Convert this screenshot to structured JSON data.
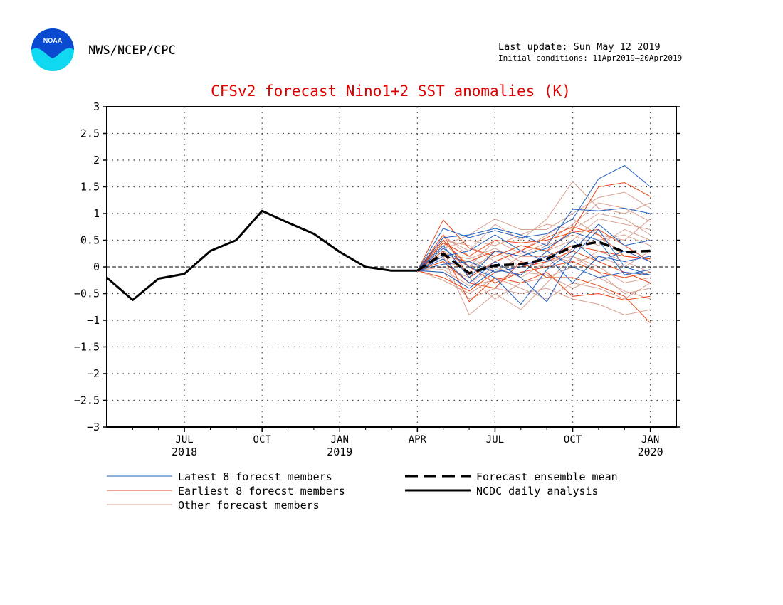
{
  "header": {
    "agency": "NWS/NCEP/CPC",
    "logo_text": "NOAA",
    "last_update": "Last update: Sun May 12 2019",
    "initial_conditions": "Initial conditions: 11Apr2019—20Apr2019"
  },
  "colors": {
    "title": "#e00000",
    "latest": "#1f5fbf",
    "earliest": "#e84818",
    "other": "#d8a090",
    "analysis": "#000000",
    "logo_blue": "#0a4ad0",
    "logo_cyan": "#10d8f0"
  },
  "chart_data": {
    "type": "line",
    "title": "CFSv2 forecast Nino1+2 SST anomalies (K)",
    "ylim": [
      -3,
      3
    ],
    "yticks": [
      "3",
      "2.5",
      "2",
      "1.5",
      "1",
      "0.5",
      "0",
      "−0.5",
      "−1",
      "−1.5",
      "−2",
      "−2.5",
      "−3"
    ],
    "ytick_values": [
      3,
      2.5,
      2,
      1.5,
      1,
      0.5,
      0,
      -0.5,
      -1,
      -1.5,
      -2,
      -2.5,
      -3
    ],
    "xlim": [
      "2018-04",
      "2020-01"
    ],
    "xticks": [
      {
        "month": "JUL",
        "year": "2018",
        "date": "2018-07"
      },
      {
        "month": "OCT",
        "year": "",
        "date": "2018-10"
      },
      {
        "month": "JAN",
        "year": "2019",
        "date": "2019-01"
      },
      {
        "month": "APR",
        "year": "",
        "date": "2019-04"
      },
      {
        "month": "JUL",
        "year": "",
        "date": "2019-07"
      },
      {
        "month": "OCT",
        "year": "",
        "date": "2019-10"
      },
      {
        "month": "JAN",
        "year": "2020",
        "date": "2020-01"
      }
    ],
    "grid": true,
    "legend_placement": "bottom",
    "legend": [
      {
        "label": "Latest 8 forecst members",
        "style": "latest"
      },
      {
        "label": "Earliest 8 forecst members",
        "style": "earliest"
      },
      {
        "label": "Other forecast members",
        "style": "other"
      },
      {
        "label": "Forecast ensemble mean",
        "style": "mean"
      },
      {
        "label": "NCDC daily analysis",
        "style": "analysis"
      }
    ],
    "analysis": {
      "x": [
        "2018-04",
        "2018-05",
        "2018-06",
        "2018-07",
        "2018-08",
        "2018-09",
        "2018-10",
        "2018-11",
        "2018-12",
        "2019-01",
        "2019-02",
        "2019-03",
        "2019-04"
      ],
      "y": [
        -0.2,
        -0.62,
        -0.22,
        -0.13,
        0.3,
        0.5,
        1.05,
        0.83,
        0.62,
        0.28,
        0.0,
        -0.07,
        -0.07
      ]
    },
    "ensemble_mean": {
      "x": [
        "2019-04",
        "2019-05",
        "2019-06",
        "2019-07",
        "2019-08",
        "2019-09",
        "2019-10",
        "2019-11",
        "2019-12",
        "2020-01"
      ],
      "y": [
        -0.07,
        0.25,
        -0.12,
        0.03,
        0.05,
        0.15,
        0.38,
        0.47,
        0.28,
        0.3
      ]
    },
    "forecast_x": [
      "2019-04",
      "2019-05",
      "2019-06",
      "2019-07",
      "2019-08",
      "2019-09",
      "2019-10",
      "2019-11",
      "2019-12",
      "2020-01"
    ],
    "latest_members": [
      [
        -0.07,
        0.72,
        0.55,
        0.68,
        0.55,
        0.62,
        0.9,
        1.65,
        1.9,
        1.5
      ],
      [
        -0.07,
        0.55,
        0.6,
        0.72,
        0.6,
        0.4,
        1.08,
        1.05,
        1.1,
        1.0
      ],
      [
        -0.07,
        0.35,
        0.0,
        -0.2,
        -0.7,
        -0.05,
        0.3,
        0.8,
        0.4,
        0.5
      ],
      [
        -0.07,
        0.15,
        -0.3,
        0.1,
        -0.2,
        -0.65,
        0.2,
        0.7,
        0.0,
        -0.15
      ],
      [
        -0.07,
        0.4,
        -0.2,
        0.3,
        0.2,
        0.35,
        0.65,
        0.5,
        -0.15,
        -0.05
      ],
      [
        -0.07,
        0.05,
        0.1,
        -0.1,
        0.0,
        0.2,
        -0.3,
        0.2,
        0.1,
        0.2
      ],
      [
        -0.07,
        0.2,
        0.3,
        0.6,
        0.3,
        0.1,
        0.5,
        0.1,
        0.3,
        0.1
      ],
      [
        -0.07,
        -0.1,
        -0.4,
        -0.05,
        -0.15,
        0.3,
        0.0,
        -0.2,
        -0.1,
        -0.15
      ]
    ],
    "earliest_members": [
      [
        -0.07,
        0.88,
        0.35,
        0.2,
        0.4,
        0.3,
        0.7,
        1.5,
        1.58,
        1.32
      ],
      [
        -0.07,
        0.6,
        -0.2,
        0.1,
        0.3,
        0.55,
        0.75,
        0.6,
        0.2,
        0.15
      ],
      [
        -0.07,
        0.3,
        -0.65,
        -0.2,
        -0.3,
        -0.1,
        -0.55,
        -0.5,
        -0.62,
        -0.55
      ],
      [
        -0.07,
        0.1,
        -0.3,
        -0.4,
        0.1,
        -0.2,
        -0.2,
        -0.35,
        -0.55,
        -1.05
      ],
      [
        -0.07,
        0.45,
        0.2,
        0.5,
        0.45,
        0.5,
        0.65,
        0.7,
        0.4,
        0.1
      ],
      [
        -0.07,
        -0.2,
        -0.45,
        -0.1,
        0.0,
        0.1,
        0.3,
        0.1,
        -0.1,
        -0.3
      ],
      [
        -0.07,
        0.2,
        0.1,
        0.3,
        0.2,
        0.2,
        0.4,
        0.3,
        0.2,
        0.15
      ],
      [
        -0.07,
        0.5,
        0.0,
        -0.3,
        -0.1,
        0.0,
        0.1,
        -0.1,
        -0.2,
        -0.1
      ]
    ],
    "other_members": [
      [
        -0.07,
        0.55,
        0.3,
        0.8,
        0.5,
        0.9,
        1.6,
        1.1,
        1.0,
        1.2
      ],
      [
        -0.07,
        0.2,
        -0.9,
        -0.5,
        -0.8,
        -0.3,
        0.2,
        -0.1,
        -0.5,
        -0.4
      ],
      [
        -0.07,
        0.4,
        0.6,
        0.9,
        0.7,
        0.7,
        1.0,
        1.3,
        1.4,
        1.1
      ],
      [
        -0.07,
        -0.1,
        -0.6,
        -0.4,
        -0.5,
        -0.4,
        -0.6,
        -0.7,
        -0.9,
        -0.8
      ],
      [
        -0.07,
        0.3,
        0.0,
        0.2,
        0.4,
        0.3,
        0.5,
        0.9,
        0.8,
        0.7
      ],
      [
        -0.07,
        0.1,
        -0.3,
        0.0,
        -0.2,
        0.1,
        0.2,
        0.0,
        -0.3,
        -0.2
      ],
      [
        -0.07,
        0.5,
        0.4,
        0.1,
        0.3,
        0.6,
        0.9,
        0.6,
        0.5,
        0.9
      ],
      [
        -0.07,
        0.0,
        -0.2,
        -0.6,
        -0.3,
        -0.2,
        0.0,
        0.3,
        0.1,
        -0.1
      ],
      [
        -0.07,
        0.25,
        0.15,
        0.35,
        0.1,
        0.0,
        0.35,
        0.5,
        0.6,
        0.4
      ],
      [
        -0.07,
        -0.25,
        -0.5,
        -0.2,
        -0.4,
        -0.6,
        -0.3,
        -0.4,
        -0.6,
        -0.3
      ],
      [
        -0.07,
        0.35,
        0.5,
        0.4,
        0.6,
        0.8,
        0.7,
        1.0,
        0.9,
        0.6
      ],
      [
        -0.07,
        0.15,
        -0.1,
        0.3,
        0.0,
        0.2,
        0.1,
        0.2,
        0.0,
        0.3
      ],
      [
        -0.07,
        0.6,
        0.2,
        -0.1,
        0.2,
        0.4,
        0.6,
        0.4,
        0.7,
        0.5
      ],
      [
        -0.07,
        -0.05,
        -0.35,
        -0.25,
        -0.1,
        -0.15,
        -0.4,
        -0.2,
        -0.45,
        -0.6
      ],
      [
        -0.07,
        0.45,
        0.0,
        0.5,
        0.25,
        0.45,
        0.8,
        1.2,
        1.1,
        0.85
      ]
    ]
  }
}
